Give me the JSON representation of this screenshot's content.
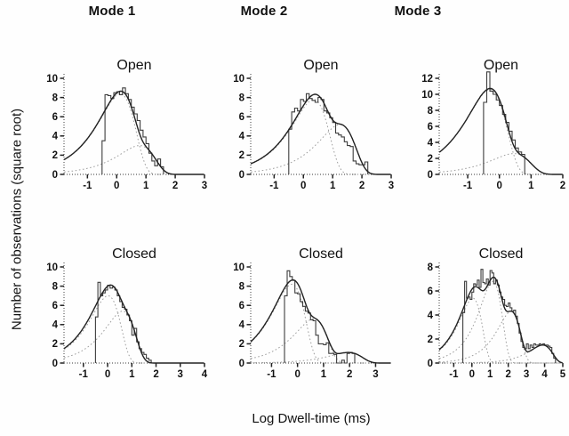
{
  "figure": {
    "column_headers": [
      "Mode 1",
      "Mode 2",
      "Mode 3"
    ],
    "y_axis_label": "Number of observations (square root)",
    "x_axis_label": "Log Dwell-time (ms)",
    "colors": {
      "background": "#fefefe",
      "text": "#111111",
      "axis": "#222222",
      "histogram": "#3d3d3d",
      "fit_total": "#222222",
      "fit_component": "#9e9e9e"
    }
  },
  "chart_data": [
    {
      "type": "bar",
      "subtype": "sqrt-dwell-time-histogram-with-fits",
      "mode": "Mode 1",
      "title": "Open",
      "xlim": [
        -1.8,
        3
      ],
      "xticks": [
        -1,
        0,
        1,
        2,
        3
      ],
      "ylim": [
        0,
        10
      ],
      "yticks": [
        0,
        2,
        4,
        6,
        8,
        10
      ],
      "bin_start": -0.5,
      "bin_width": 0.1,
      "bin_values": [
        3.5,
        8.3,
        8.2,
        7.9,
        8.5,
        8.6,
        8.3,
        9.0,
        8.4,
        7.8,
        7.0,
        6.3,
        5.6,
        4.6,
        3.9,
        3.2,
        2.2,
        1.4,
        0.9,
        1.6,
        0.8
      ],
      "fit_components": [
        {
          "peak": 8.4,
          "log_tau": 0.12
        },
        {
          "peak": 3.0,
          "log_tau": 0.78
        }
      ]
    },
    {
      "type": "bar",
      "subtype": "sqrt-dwell-time-histogram-with-fits",
      "mode": "Mode 2",
      "title": "Open",
      "xlim": [
        -1.8,
        3
      ],
      "xticks": [
        -1,
        0,
        1,
        2,
        3
      ],
      "ylim": [
        0,
        10
      ],
      "yticks": [
        0,
        2,
        4,
        6,
        8,
        10
      ],
      "bin_start": -0.5,
      "bin_width": 0.1,
      "bin_values": [
        4.7,
        6.5,
        6.9,
        6.6,
        7.8,
        7.6,
        8.4,
        7.9,
        7.7,
        7.5,
        8.0,
        7.8,
        6.6,
        6.4,
        5.9,
        5.4,
        4.3,
        4.1,
        3.9,
        3.4,
        3.0,
        2.9,
        1.4,
        1.1,
        1.0,
        1.0,
        1.3
      ],
      "fit_components": [
        {
          "peak": 7.8,
          "log_tau": 0.35
        },
        {
          "peak": 5.2,
          "log_tau": 1.25
        }
      ]
    },
    {
      "type": "bar",
      "subtype": "sqrt-dwell-time-histogram-with-fits",
      "mode": "Mode 3",
      "title": "Open",
      "xlim": [
        -1.9,
        2
      ],
      "xticks": [
        -1,
        0,
        1,
        2
      ],
      "ylim": [
        0,
        12
      ],
      "yticks": [
        0,
        2,
        4,
        6,
        8,
        10,
        12
      ],
      "bin_start": -0.5,
      "bin_width": 0.1,
      "bin_values": [
        9.0,
        12.8,
        10.4,
        10.0,
        9.3,
        8.6,
        7.5,
        6.5,
        5.4,
        4.3,
        3.3,
        2.8,
        2.5
      ],
      "fit_components": [
        {
          "peak": 10.6,
          "log_tau": -0.3
        },
        {
          "peak": 2.6,
          "log_tau": 0.45
        }
      ]
    },
    {
      "type": "bar",
      "subtype": "sqrt-dwell-time-histogram-with-fits",
      "mode": "Mode 1",
      "title": "Closed",
      "xlim": [
        -1.8,
        4
      ],
      "xticks": [
        -1,
        0,
        1,
        2,
        3,
        4
      ],
      "ylim": [
        0,
        10
      ],
      "yticks": [
        0,
        2,
        4,
        6,
        8,
        10
      ],
      "bin_start": -0.5,
      "bin_width": 0.1,
      "bin_values": [
        4.8,
        8.4,
        7.0,
        7.3,
        7.6,
        8.1,
        7.8,
        7.9,
        7.6,
        7.0,
        6.4,
        5.8,
        5.6,
        5.0,
        4.4,
        2.9,
        3.6,
        2.2,
        1.5,
        1.1,
        0.9,
        0.5,
        0.3
      ],
      "fit_components": [
        {
          "peak": 7.0,
          "log_tau": 0.02
        },
        {
          "peak": 5.4,
          "log_tau": 0.62
        }
      ]
    },
    {
      "type": "bar",
      "subtype": "sqrt-dwell-time-histogram-with-fits",
      "mode": "Mode 2",
      "title": "Closed",
      "xlim": [
        -1.8,
        3.6
      ],
      "xticks": [
        -1,
        0,
        1,
        2,
        3
      ],
      "ylim": [
        0,
        10
      ],
      "yticks": [
        0,
        2,
        4,
        6,
        8,
        10
      ],
      "bin_start": -0.5,
      "bin_width": 0.1,
      "bin_values": [
        7.0,
        9.6,
        9.0,
        8.6,
        7.3,
        7.2,
        6.4,
        5.9,
        5.4,
        5.2,
        4.5,
        4.4,
        2.9,
        2.0,
        2.0,
        1.9,
        2.1,
        1.0,
        1.0,
        0.9,
        0.0,
        0.0,
        0.3,
        0.0,
        1.0,
        1.1,
        1.0
      ],
      "fit_components": [
        {
          "peak": 8.2,
          "log_tau": -0.22
        },
        {
          "peak": 4.6,
          "log_tau": 0.62
        },
        {
          "peak": 1.1,
          "log_tau": 1.95
        }
      ]
    },
    {
      "type": "bar",
      "subtype": "sqrt-dwell-time-histogram-with-fits",
      "mode": "Mode 3",
      "title": "Closed",
      "xlim": [
        -1.8,
        5
      ],
      "xticks": [
        -1,
        0,
        1,
        2,
        3,
        4,
        5
      ],
      "ylim": [
        0,
        8
      ],
      "yticks": [
        0,
        2,
        4,
        6,
        8
      ],
      "bin_start": -0.5,
      "bin_width": 0.1,
      "bin_values": [
        4.2,
        6.8,
        5.4,
        5.5,
        5.3,
        5.9,
        6.6,
        6.5,
        6.9,
        6.3,
        7.8,
        6.7,
        6.6,
        7.0,
        6.5,
        7.7,
        7.5,
        6.6,
        6.9,
        6.5,
        5.9,
        5.5,
        5.3,
        4.8,
        4.7,
        5.0,
        4.6,
        4.3,
        4.4,
        3.9,
        3.3,
        2.5,
        1.8,
        1.3,
        1.2,
        1.6,
        1.2,
        1.5,
        1.3,
        1.6,
        1.5,
        1.5,
        1.6,
        1.5,
        1.6,
        1.5,
        1.5,
        1.4,
        1.3,
        0.8,
        0.4
      ],
      "fit_components": [
        {
          "peak": 5.4,
          "log_tau": 0.05
        },
        {
          "peak": 6.8,
          "log_tau": 1.15
        },
        {
          "peak": 4.3,
          "log_tau": 2.15
        },
        {
          "peak": 1.5,
          "log_tau": 3.9
        }
      ]
    }
  ]
}
